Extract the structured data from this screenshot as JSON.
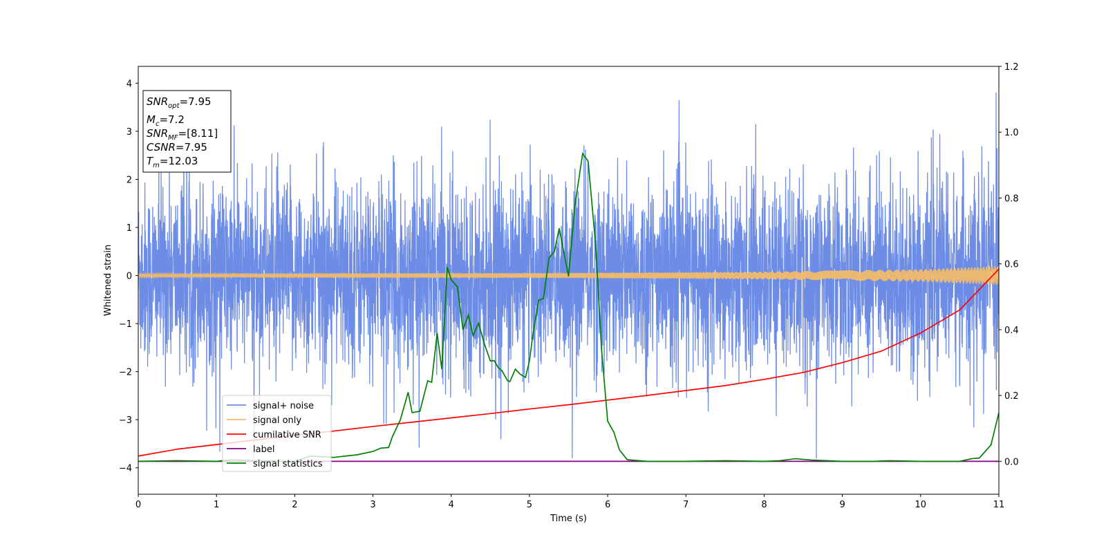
{
  "chart_data": {
    "type": "line",
    "xlabel": "Time (s)",
    "ylabel": "Whitened strain",
    "xlim": [
      0,
      11
    ],
    "ylim_left": [
      -4.55,
      4.35
    ],
    "ylim_right": [
      -0.1,
      1.2
    ],
    "x_ticks": [
      0,
      1,
      2,
      3,
      4,
      5,
      6,
      7,
      8,
      9,
      10,
      11
    ],
    "y_ticks_left": [
      -4,
      -3,
      -2,
      -1,
      0,
      1,
      2,
      3,
      4
    ],
    "y_ticks_right": [
      0.0,
      0.2,
      0.4,
      0.6,
      0.8,
      1.0,
      1.2
    ],
    "grid": false,
    "legend_position": "lower-left",
    "annotation_box": {
      "position": "top-left",
      "lines": [
        {
          "base": "SNR",
          "sub": "opt",
          "value": "=7.95"
        },
        {
          "base": "M",
          "sub": "c",
          "value": "=7.2"
        },
        {
          "base": "SNR",
          "sub": "MF",
          "value": "=[8.11]"
        },
        {
          "base": "CSNR",
          "sub": "",
          "value": "=7.95"
        },
        {
          "base": "T",
          "sub": "m",
          "value": "=12.03"
        }
      ]
    },
    "series": [
      {
        "name": "signal+ noise",
        "color": "#6c8ce6",
        "axis": "left",
        "kind": "noise_band",
        "amplitude_typical": 1.9,
        "amplitude_peak": 3.8,
        "x_range": [
          0,
          11
        ]
      },
      {
        "name": "signal only",
        "color": "#f2bb6b",
        "axis": "left",
        "kind": "chirp",
        "envelope": {
          "x": [
            0,
            5,
            8,
            10,
            11
          ],
          "amp": [
            0.04,
            0.05,
            0.08,
            0.13,
            0.2
          ]
        }
      },
      {
        "name": "cumilative SNR",
        "color": "#ff0000",
        "axis": "right",
        "x": [
          0,
          0.5,
          1,
          1.5,
          2,
          2.5,
          3,
          3.5,
          4,
          4.5,
          5,
          5.5,
          6,
          6.5,
          7,
          7.5,
          8,
          8.5,
          9,
          9.5,
          10,
          10.5,
          11
        ],
        "y": [
          0.016,
          0.037,
          0.051,
          0.065,
          0.079,
          0.092,
          0.106,
          0.119,
          0.132,
          0.145,
          0.159,
          0.172,
          0.186,
          0.2,
          0.215,
          0.23,
          0.249,
          0.27,
          0.3,
          0.335,
          0.39,
          0.46,
          0.584
        ]
      },
      {
        "name": "label",
        "color": "#800080",
        "axis": "right",
        "x": [
          0,
          11
        ],
        "y": [
          0.0,
          0.0
        ]
      },
      {
        "name": "signal statistics",
        "color": "#008000",
        "axis": "right",
        "x": [
          0,
          0.5,
          1,
          1.2,
          1.5,
          2,
          2.2,
          2.5,
          2.8,
          3.0,
          3.1,
          3.2,
          3.25,
          3.35,
          3.45,
          3.5,
          3.6,
          3.7,
          3.75,
          3.82,
          3.88,
          3.95,
          4.0,
          4.08,
          4.15,
          4.22,
          4.28,
          4.35,
          4.42,
          4.5,
          4.55,
          4.6,
          4.65,
          4.72,
          4.75,
          4.82,
          4.88,
          4.95,
          5.0,
          5.05,
          5.12,
          5.18,
          5.25,
          5.32,
          5.38,
          5.5,
          5.58,
          5.68,
          5.75,
          5.85,
          5.92,
          6.0,
          6.08,
          6.15,
          6.25,
          6.5,
          7,
          7.5,
          8,
          8.2,
          8.4,
          8.6,
          9,
          9.4,
          9.6,
          10,
          10.5,
          10.65,
          10.75,
          10.9,
          11
        ],
        "y": [
          0.0,
          0.002,
          0.0,
          0.005,
          0.002,
          0.0,
          0.016,
          0.012,
          0.02,
          0.03,
          0.04,
          0.042,
          0.076,
          0.126,
          0.21,
          0.148,
          0.152,
          0.245,
          0.24,
          0.39,
          0.28,
          0.59,
          0.552,
          0.53,
          0.4,
          0.445,
          0.382,
          0.42,
          0.36,
          0.305,
          0.306,
          0.285,
          0.275,
          0.245,
          0.242,
          0.28,
          0.265,
          0.255,
          0.305,
          0.395,
          0.49,
          0.495,
          0.618,
          0.638,
          0.708,
          0.562,
          0.775,
          0.935,
          0.912,
          0.648,
          0.345,
          0.122,
          0.088,
          0.035,
          0.005,
          0.0,
          0.0,
          0.002,
          0.0,
          0.002,
          0.008,
          0.004,
          0.0,
          0.0,
          0.002,
          0.0,
          0.0,
          0.008,
          0.01,
          0.05,
          0.148
        ]
      }
    ]
  }
}
